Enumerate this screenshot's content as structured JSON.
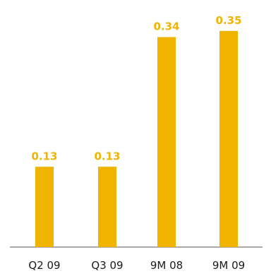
{
  "chart_data": {
    "type": "bar",
    "categories": [
      "Q2 09",
      "Q3 09",
      "9M 08",
      "9M 09"
    ],
    "values": [
      0.13,
      0.13,
      0.34,
      0.35
    ],
    "value_labels": [
      "0.13",
      "0.13",
      "0.34",
      "0.35"
    ],
    "title": "",
    "xlabel": "",
    "ylabel": "",
    "ylim": [
      0,
      0.4
    ],
    "grid": false,
    "legend": "none",
    "colors": {
      "bar": "#F0B400",
      "value_label": "#F0B400",
      "axis": "#555555",
      "tick_label": "#1a1a1a"
    }
  }
}
